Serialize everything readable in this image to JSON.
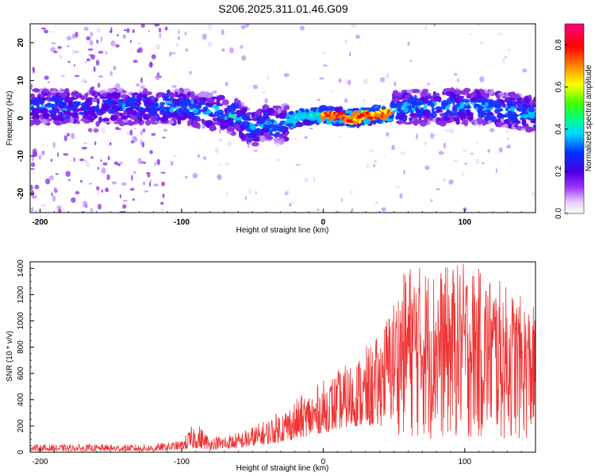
{
  "title": "S206.2025.311.01.46.G09",
  "chart_data": [
    {
      "type": "heatmap",
      "xlabel": "Height of straight line (km)",
      "ylabel": "Frequency (Hz)",
      "xlim": [
        -207,
        150
      ],
      "ylim": [
        -25,
        25
      ],
      "xticks": [
        -200,
        -100,
        0,
        100
      ],
      "xtick_labels": [
        "-200",
        "-100",
        "0",
        "100"
      ],
      "yticks": [
        -20,
        -10,
        0,
        10,
        20
      ],
      "ytick_labels": [
        "-20",
        "-10",
        "0",
        "10",
        "20"
      ],
      "ridge": {
        "description_points_x": [
          -200,
          -160,
          -120,
          -100,
          -80,
          -60,
          -50,
          -40,
          -30,
          -20,
          0,
          20,
          40,
          60,
          80,
          100,
          120,
          150
        ],
        "frequency_hz": [
          3,
          3,
          3,
          3,
          2,
          0,
          -3,
          -1,
          -2,
          0,
          1,
          0,
          1,
          3,
          3,
          3,
          3,
          1
        ]
      },
      "colorbar": {
        "label": "Normalized spectral amplitude",
        "range": [
          0,
          0.9
        ],
        "ticks": [
          0,
          0.2,
          0.4,
          0.6,
          0.8
        ],
        "tick_labels": [
          "0.0",
          "0.2",
          "0.4",
          "0.6",
          "0.8"
        ],
        "colormap": "hsv-like: lavender-violet-blue-cyan-green-yellow-red-magenta"
      }
    },
    {
      "type": "line",
      "xlabel": "Height of straight line (km)",
      "ylabel": "SNR (10 * v/v)",
      "xlim": [
        -207,
        150
      ],
      "ylim": [
        0,
        1450
      ],
      "xticks": [
        -200,
        -100,
        0,
        100
      ],
      "xtick_labels": [
        "-200",
        "-100",
        "0",
        "100"
      ],
      "yticks": [
        0,
        200,
        400,
        600,
        800,
        1000,
        1200,
        1400
      ],
      "ytick_labels": [
        "0",
        "200",
        "400",
        "600",
        "800",
        "1000",
        "1200",
        "1400"
      ],
      "series": [
        {
          "name": "SNR",
          "color": "#ee3333",
          "envelope_x": [
            -207,
            -120,
            -100,
            -90,
            -80,
            -60,
            -40,
            -20,
            0,
            20,
            40,
            60,
            80,
            100,
            120,
            150
          ],
          "envelope_low": [
            10,
            10,
            20,
            30,
            20,
            30,
            60,
            100,
            150,
            200,
            200,
            100,
            80,
            80,
            80,
            80
          ],
          "envelope_high": [
            60,
            60,
            90,
            240,
            120,
            150,
            250,
            400,
            550,
            700,
            900,
            1450,
            1400,
            1450,
            1350,
            1100
          ]
        }
      ]
    }
  ],
  "colors": {
    "snr_line": "#ee3333",
    "axis": "#000000"
  }
}
